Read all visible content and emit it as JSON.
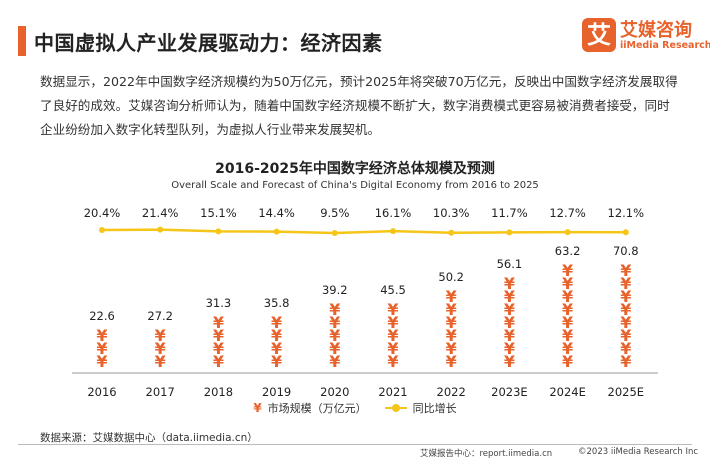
{
  "page": {
    "title": "中国虚拟人产业发展驱动力：经济因素",
    "body": "数据显示，2022年中国数字经济规模约为50万亿元，预计2025年将突破70万亿元，反映出中国数字经济发展取得了良好的成效。艾媒咨询分析师认为，随着中国数字经济规模不断扩大，数字消费模式更容易被消费者接受，同时企业纷纷加入数字化转型队列，为虚拟人行业带来发展契机。"
  },
  "brand": {
    "mark": "艾",
    "name": "艾媒咨询",
    "sub": "iiMedia Research"
  },
  "colors": {
    "accent": "#e8622c",
    "line": "#f5c518"
  },
  "chart_data": {
    "type": "bar",
    "title": "2016-2025年中国数字经济总体规模及预测",
    "subtitle": "Overall Scale and Forecast of China's Digital Economy from 2016 to 2025",
    "categories": [
      "2016",
      "2017",
      "2018",
      "2019",
      "2020",
      "2021",
      "2022",
      "2023E",
      "2024E",
      "2025E"
    ],
    "series": [
      {
        "name": "市场规模（万亿元）",
        "type": "bar",
        "marker": "yen-icon",
        "values": [
          22.6,
          27.2,
          31.3,
          35.8,
          39.2,
          45.5,
          50.2,
          56.1,
          63.2,
          70.8
        ],
        "labels": [
          "22.6",
          "27.2",
          "31.3",
          "35.8",
          "39.2",
          "45.5",
          "50.2",
          "56.1",
          "63.2",
          "70.8"
        ]
      },
      {
        "name": "同比增长",
        "type": "line",
        "values": [
          20.4,
          21.4,
          15.1,
          14.4,
          9.5,
          16.1,
          10.3,
          11.7,
          12.7,
          12.1
        ],
        "labels": [
          "20.4%",
          "21.4%",
          "15.1%",
          "14.4%",
          "9.5%",
          "16.1%",
          "10.3%",
          "11.7%",
          "12.7%",
          "12.1%"
        ]
      }
    ],
    "grid": false,
    "legend": "bottom"
  },
  "legend": {
    "bar_label": "市场规模（万亿元）",
    "line_label": "同比增长",
    "bar_glyph": "¥"
  },
  "footer": {
    "source": "数据来源：艾媒数据中心（data.iimedia.cn）",
    "report": "艾媒报告中心：report.iimedia.cn",
    "copyright": "©2023 iiMedia Research Inc"
  }
}
